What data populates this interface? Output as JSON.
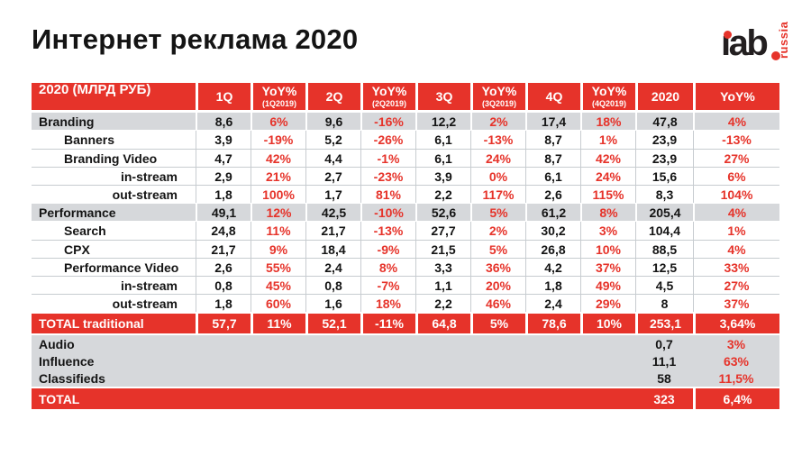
{
  "title": "Интернет реклама 2020",
  "logo": {
    "text": "iab",
    "region": "russia"
  },
  "colors": {
    "red": "#e6332a",
    "row_gray": "#d6d8db",
    "line_gray": "#c7ccd0"
  },
  "chart_data": {
    "type": "table",
    "title": "Интернет реклама 2020",
    "units": "МЛРД РУБ",
    "columns": [
      {
        "label": "2020 (МЛРД РУБ)"
      },
      {
        "label": "1Q"
      },
      {
        "label": "YoY%",
        "sub": "(1Q2019)"
      },
      {
        "label": "2Q"
      },
      {
        "label": "YoY%",
        "sub": "(2Q2019)"
      },
      {
        "label": "3Q"
      },
      {
        "label": "YoY%",
        "sub": "(3Q2019)"
      },
      {
        "label": "4Q"
      },
      {
        "label": "YoY%",
        "sub": "(4Q2019)"
      },
      {
        "label": "2020"
      },
      {
        "label": "YoY%"
      }
    ],
    "rows": [
      {
        "label": "Branding",
        "kind": "section",
        "values": [
          "8,6",
          "6%",
          "9,6",
          "-16%",
          "12,2",
          "2%",
          "17,4",
          "18%",
          "47,8",
          "4%"
        ]
      },
      {
        "label": "Banners",
        "kind": "item",
        "values": [
          "3,9",
          "-19%",
          "5,2",
          "-26%",
          "6,1",
          "-13%",
          "8,7",
          "1%",
          "23,9",
          "-13%"
        ]
      },
      {
        "label": "Branding Video",
        "kind": "item",
        "values": [
          "4,7",
          "42%",
          "4,4",
          "-1%",
          "6,1",
          "24%",
          "8,7",
          "42%",
          "23,9",
          "27%"
        ]
      },
      {
        "label": "in-stream",
        "kind": "deep",
        "values": [
          "2,9",
          "21%",
          "2,7",
          "-23%",
          "3,9",
          "0%",
          "6,1",
          "24%",
          "15,6",
          "6%"
        ]
      },
      {
        "label": "out-stream",
        "kind": "deep",
        "values": [
          "1,8",
          "100%",
          "1,7",
          "81%",
          "2,2",
          "117%",
          "2,6",
          "115%",
          "8,3",
          "104%"
        ]
      },
      {
        "label": "Performance",
        "kind": "section",
        "values": [
          "49,1",
          "12%",
          "42,5",
          "-10%",
          "52,6",
          "5%",
          "61,2",
          "8%",
          "205,4",
          "4%"
        ]
      },
      {
        "label": "Search",
        "kind": "item",
        "values": [
          "24,8",
          "11%",
          "21,7",
          "-13%",
          "27,7",
          "2%",
          "30,2",
          "3%",
          "104,4",
          "1%"
        ]
      },
      {
        "label": "CPX",
        "kind": "item",
        "values": [
          "21,7",
          "9%",
          "18,4",
          "-9%",
          "21,5",
          "5%",
          "26,8",
          "10%",
          "88,5",
          "4%"
        ]
      },
      {
        "label": "Performance Video",
        "kind": "item",
        "values": [
          "2,6",
          "55%",
          "2,4",
          "8%",
          "3,3",
          "36%",
          "4,2",
          "37%",
          "12,5",
          "33%"
        ]
      },
      {
        "label": "in-stream",
        "kind": "deep",
        "values": [
          "0,8",
          "45%",
          "0,8",
          "-7%",
          "1,1",
          "20%",
          "1,8",
          "49%",
          "4,5",
          "27%"
        ]
      },
      {
        "label": "out-stream",
        "kind": "deep",
        "values": [
          "1,8",
          "60%",
          "1,6",
          "18%",
          "2,2",
          "46%",
          "2,4",
          "29%",
          "8",
          "37%"
        ]
      },
      {
        "label": "TOTAL traditional",
        "kind": "total",
        "values": [
          "57,7",
          "11%",
          "52,1",
          "-11%",
          "64,8",
          "5%",
          "78,6",
          "10%",
          "253,1",
          "3,64%"
        ]
      },
      {
        "label": "Audio",
        "kind": "extra",
        "values": [
          "",
          "",
          "",
          "",
          "",
          "",
          "",
          "",
          "0,7",
          "3%"
        ]
      },
      {
        "label": "Influence",
        "kind": "extra",
        "values": [
          "",
          "",
          "",
          "",
          "",
          "",
          "",
          "",
          "11,1",
          "63%"
        ]
      },
      {
        "label": "Classifieds",
        "kind": "extra",
        "values": [
          "",
          "",
          "",
          "",
          "",
          "",
          "",
          "",
          "58",
          "11,5%"
        ]
      },
      {
        "label": "TOTAL",
        "kind": "grand",
        "values": [
          "",
          "",
          "",
          "",
          "",
          "",
          "",
          "",
          "323",
          "6,4%"
        ]
      }
    ]
  }
}
